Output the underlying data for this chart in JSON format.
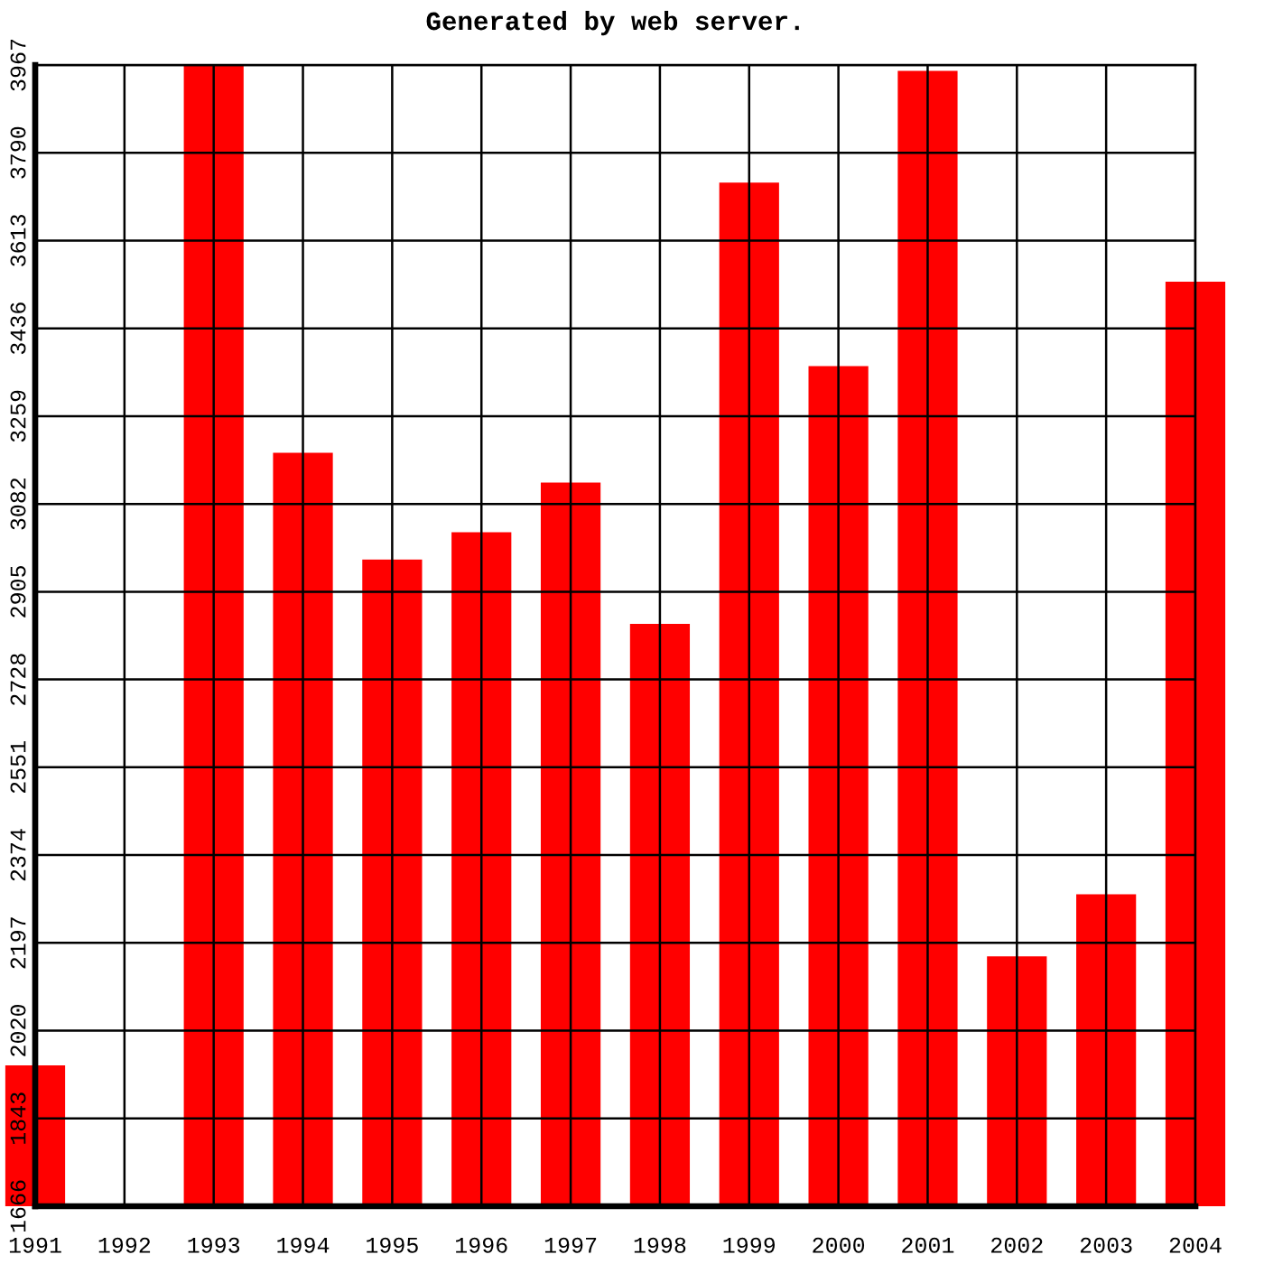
{
  "chart_data": {
    "type": "bar",
    "title": "Generated by web server.",
    "categories": [
      "1991",
      "1992",
      "1993",
      "1994",
      "1995",
      "1996",
      "1997",
      "1998",
      "1999",
      "2000",
      "2001",
      "2002",
      "2003",
      "2004"
    ],
    "values": [
      1950,
      null,
      3967,
      3185,
      2970,
      3025,
      3125,
      2840,
      3730,
      3360,
      3955,
      2170,
      2295,
      3530
    ],
    "color": "#ff0000",
    "ylim": [
      1666,
      3967
    ],
    "yticks": [
      1666,
      1843,
      2020,
      2197,
      2374,
      2551,
      2728,
      2905,
      3082,
      3259,
      3436,
      3613,
      3790,
      3967
    ],
    "grid": true
  }
}
